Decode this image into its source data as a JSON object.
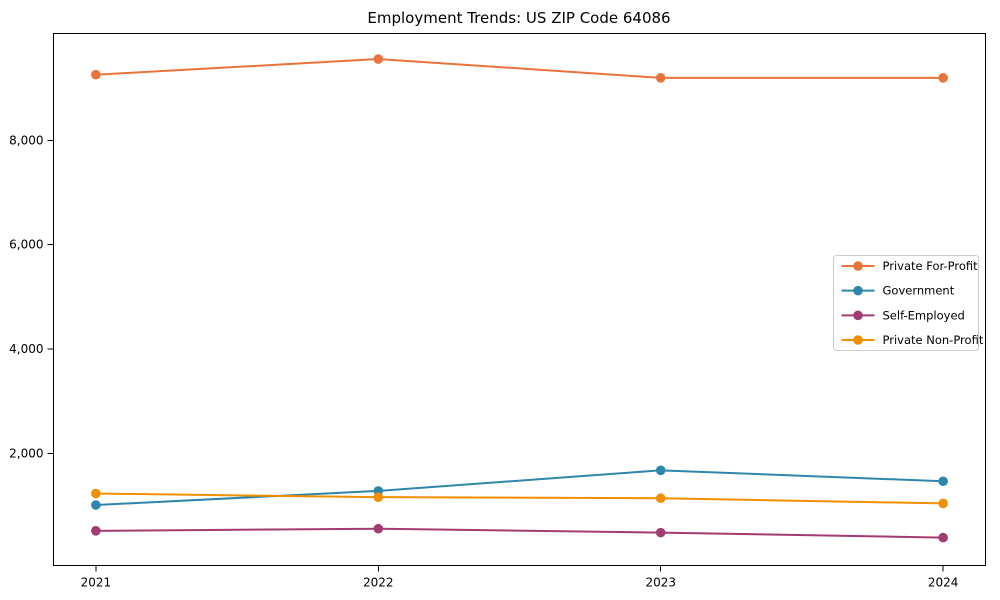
{
  "title": "Employment Trends: US ZIP Code 64086",
  "chart_data": {
    "type": "line",
    "title": "Employment Trends: US ZIP Code 64086",
    "xlabel": "",
    "ylabel": "",
    "x": [
      2021,
      2022,
      2023,
      2024
    ],
    "categories": [
      "2021",
      "2022",
      "2023",
      "2024"
    ],
    "series": [
      {
        "name": "Private For-Profit",
        "color": "#E8743B",
        "values": [
          9260,
          9560,
          9200,
          9200
        ]
      },
      {
        "name": "Government",
        "color": "#2E86AB",
        "values": [
          1010,
          1280,
          1675,
          1465
        ]
      },
      {
        "name": "Self-Employed",
        "color": "#A23B72",
        "values": [
          515,
          555,
          480,
          385
        ]
      },
      {
        "name": "Private Non-Profit",
        "color": "#F18F01",
        "values": [
          1230,
          1160,
          1140,
          1040
        ]
      }
    ],
    "xlim": [
      2020.85,
      2024.15
    ],
    "ylim": [
      -150,
      10050
    ],
    "yticks": [
      2000,
      4000,
      6000,
      8000
    ],
    "ytick_labels": [
      "2,000",
      "4,000",
      "6,000",
      "8,000"
    ],
    "grid": false,
    "legend_position": "center-right",
    "marker": "circle",
    "axis_color": "#000000",
    "legend_border_color": "#cccccc",
    "legend_bg_color": "#ffffff"
  }
}
